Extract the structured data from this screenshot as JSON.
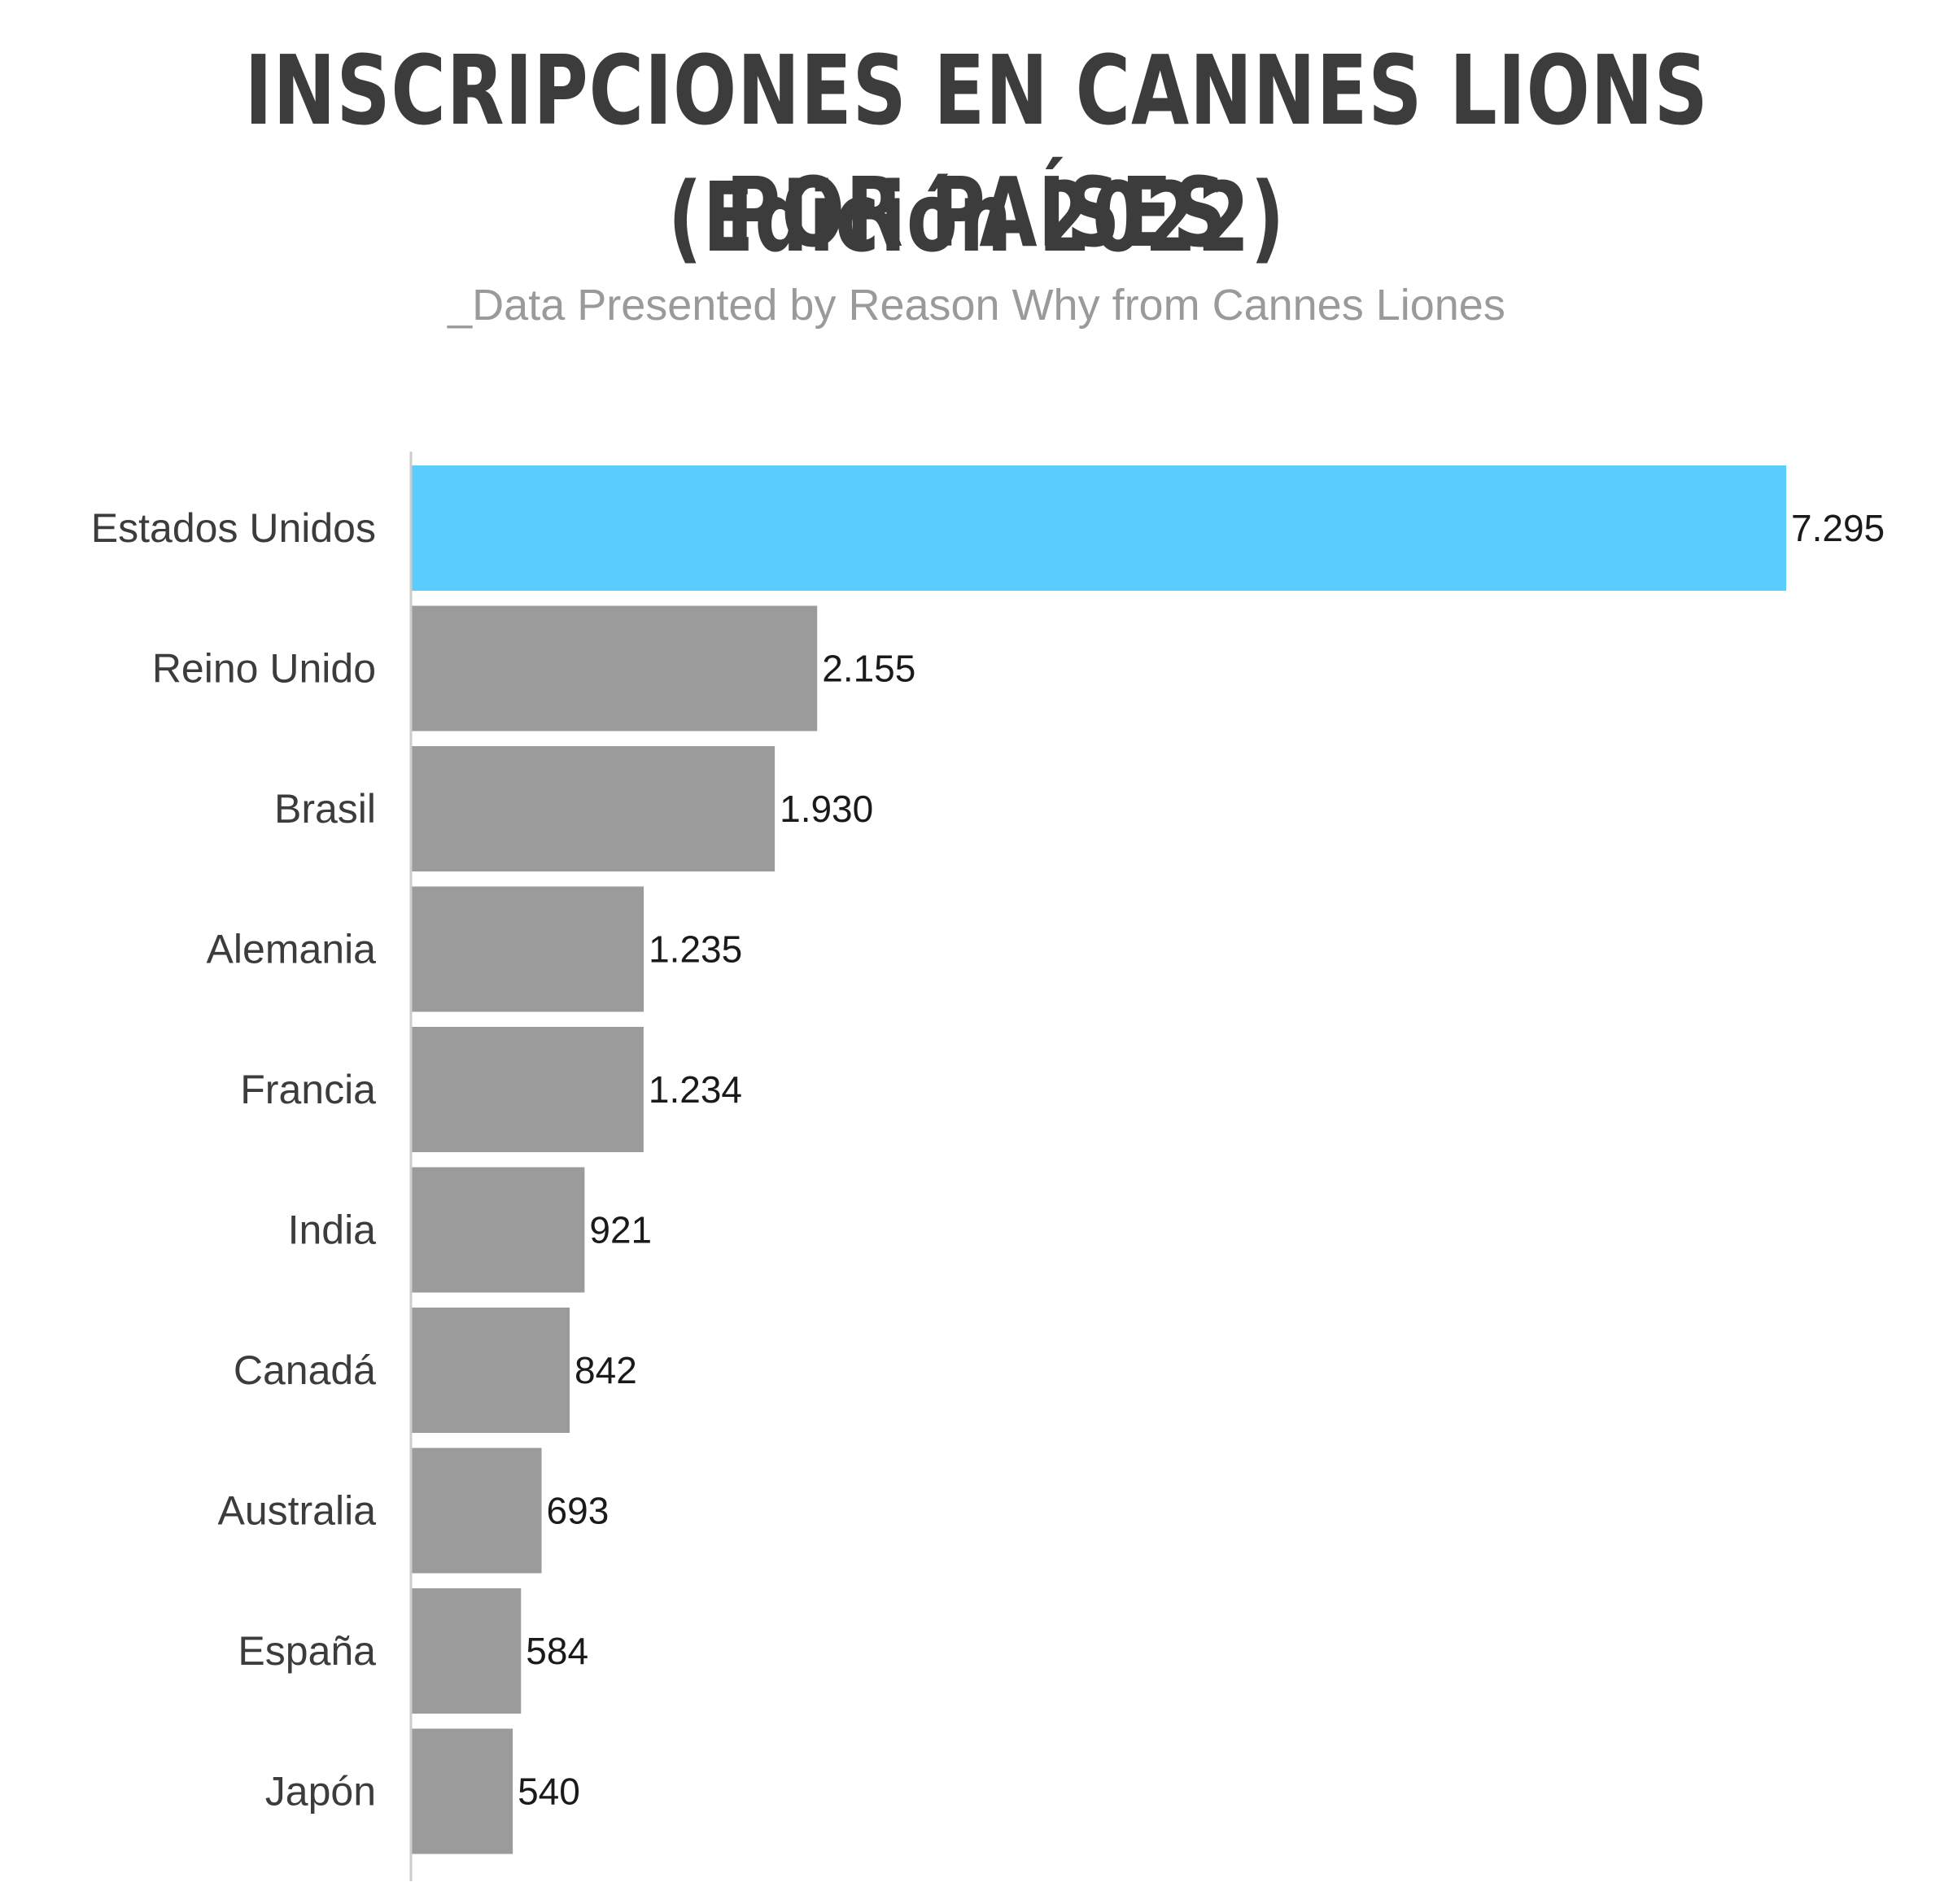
{
  "header": {
    "title_line1": "INSCRIPCIONES EN CANNES LIONS POR PAÍSES",
    "title_line2": "(Edición 2022)",
    "subtitle": "_Data Presented by Reason Why from Cannes Liones"
  },
  "chart_data": {
    "type": "bar",
    "orientation": "horizontal",
    "categories": [
      "Estados Unidos",
      "Reino Unido",
      "Brasil",
      "Alemania",
      "Francia",
      "India",
      "Canadá",
      "Australia",
      "España",
      "Japón"
    ],
    "values": [
      7295,
      2155,
      1930,
      1235,
      1234,
      921,
      842,
      693,
      584,
      540
    ],
    "value_labels": [
      "7.295",
      "2.155",
      "1.930",
      "1.235",
      "1.234",
      "921",
      "842",
      "693",
      "584",
      "540"
    ],
    "title": "INSCRIPCIONES EN CANNES LIONS POR PAÍSES (Edición 2022)",
    "subtitle": "_Data Presented by Reason Why from Cannes Liones",
    "xlabel": "",
    "ylabel": "",
    "xlim": [
      0,
      7295
    ],
    "grid": false,
    "legend": "none",
    "colors": {
      "highlight": "#5bcdfd",
      "default": "#9b9b9b",
      "axis": "#cccccc"
    }
  }
}
